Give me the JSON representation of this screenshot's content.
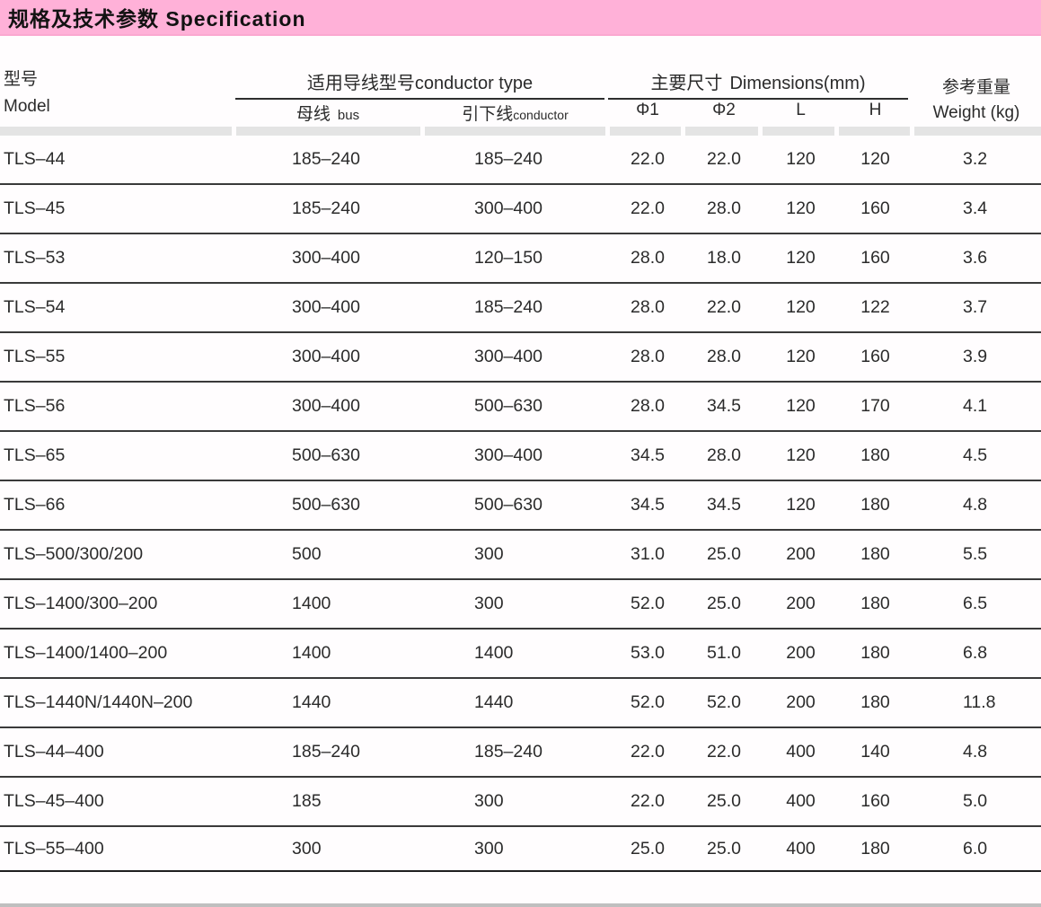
{
  "title_bar": {
    "label": "规格及技术参数 Specification",
    "background_color": "#ffb1d8"
  },
  "colors": {
    "title_bar_pink": "#ffb1d8",
    "header_gray_bar": "#e4e4e4",
    "row_separator": "#3a3a3a",
    "text": "#2b2b2b",
    "page_background": "#fffdfe"
  },
  "table": {
    "headers": {
      "model_zh": "型号",
      "model_en": "Model",
      "conductor_group_zh": "适用导线型号",
      "conductor_group_en": "conductor type",
      "bus_zh": "母线",
      "bus_en": "bus",
      "down_zh": "引下线",
      "down_en": "conductor",
      "dims_zh": "主要尺寸",
      "dims_en": "Dimensions(mm)",
      "d1": "Φ1",
      "d2": "Φ2",
      "l": "L",
      "h": "H",
      "weight_zh": "参考重量",
      "weight_en": "Weight (kg)"
    },
    "rows": [
      {
        "model": "TLS–44",
        "bus": "185–240",
        "conductor": "185–240",
        "d1": "22.0",
        "d2": "22.0",
        "l": "120",
        "h": "120",
        "weight": "3.2"
      },
      {
        "model": "TLS–45",
        "bus": "185–240",
        "conductor": "300–400",
        "d1": "22.0",
        "d2": "28.0",
        "l": "120",
        "h": "160",
        "weight": "3.4"
      },
      {
        "model": "TLS–53",
        "bus": "300–400",
        "conductor": "120–150",
        "d1": "28.0",
        "d2": "18.0",
        "l": "120",
        "h": "160",
        "weight": "3.6"
      },
      {
        "model": "TLS–54",
        "bus": "300–400",
        "conductor": "185–240",
        "d1": "28.0",
        "d2": "22.0",
        "l": "120",
        "h": "122",
        "weight": "3.7"
      },
      {
        "model": "TLS–55",
        "bus": "300–400",
        "conductor": "300–400",
        "d1": "28.0",
        "d2": "28.0",
        "l": "120",
        "h": "160",
        "weight": "3.9"
      },
      {
        "model": "TLS–56",
        "bus": "300–400",
        "conductor": "500–630",
        "d1": "28.0",
        "d2": "34.5",
        "l": "120",
        "h": "170",
        "weight": "4.1"
      },
      {
        "model": "TLS–65",
        "bus": "500–630",
        "conductor": "300–400",
        "d1": "34.5",
        "d2": "28.0",
        "l": "120",
        "h": "180",
        "weight": "4.5"
      },
      {
        "model": "TLS–66",
        "bus": "500–630",
        "conductor": "500–630",
        "d1": "34.5",
        "d2": "34.5",
        "l": "120",
        "h": "180",
        "weight": "4.8"
      },
      {
        "model": "TLS–500/300/200",
        "bus": "500",
        "conductor": "300",
        "d1": "31.0",
        "d2": "25.0",
        "l": "200",
        "h": "180",
        "weight": "5.5"
      },
      {
        "model": "TLS–1400/300–200",
        "bus": "1400",
        "conductor": "300",
        "d1": "52.0",
        "d2": "25.0",
        "l": "200",
        "h": "180",
        "weight": "6.5"
      },
      {
        "model": "TLS–1400/1400–200",
        "bus": "1400",
        "conductor": "1400",
        "d1": "53.0",
        "d2": "51.0",
        "l": "200",
        "h": "180",
        "weight": "6.8"
      },
      {
        "model": "TLS–1440N/1440N–200",
        "bus": "1440",
        "conductor": "1440",
        "d1": "52.0",
        "d2": "52.0",
        "l": "200",
        "h": "180",
        "weight": "11.8"
      },
      {
        "model": "TLS–44–400",
        "bus": "185–240",
        "conductor": "185–240",
        "d1": "22.0",
        "d2": "22.0",
        "l": "400",
        "h": "140",
        "weight": "4.8"
      },
      {
        "model": "TLS–45–400",
        "bus": "185",
        "conductor": "300",
        "d1": "22.0",
        "d2": "25.0",
        "l": "400",
        "h": "160",
        "weight": "5.0"
      },
      {
        "model": "TLS–55–400",
        "bus": "300",
        "conductor": "300",
        "d1": "25.0",
        "d2": "25.0",
        "l": "400",
        "h": "180",
        "weight": "6.0"
      }
    ]
  }
}
